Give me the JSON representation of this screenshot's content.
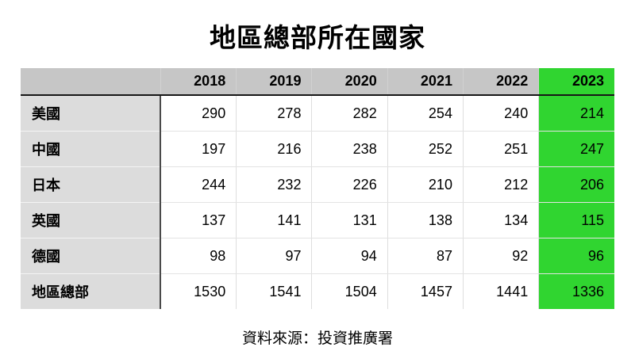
{
  "chart_data": {
    "type": "table",
    "title": "地區總部所在國家",
    "categories": [
      "2018",
      "2019",
      "2020",
      "2021",
      "2022",
      "2023"
    ],
    "series": [
      {
        "name": "美國",
        "values": [
          290,
          278,
          282,
          254,
          240,
          214
        ]
      },
      {
        "name": "中國",
        "values": [
          197,
          216,
          238,
          252,
          251,
          247
        ]
      },
      {
        "name": "日本",
        "values": [
          244,
          232,
          226,
          210,
          212,
          206
        ]
      },
      {
        "name": "英國",
        "values": [
          137,
          141,
          131,
          138,
          134,
          115
        ]
      },
      {
        "name": "德國",
        "values": [
          98,
          97,
          94,
          87,
          92,
          96
        ]
      },
      {
        "name": "地區總部",
        "values": [
          1530,
          1541,
          1504,
          1457,
          1441,
          1336
        ]
      }
    ],
    "highlight_column": "2023",
    "corner_label": "",
    "source": "資料來源：投資推廣署",
    "layout_hints": {
      "header_position": "top",
      "row_labels_position": "left",
      "grid": "light"
    }
  },
  "colors": {
    "header_gray": "#c6c6c6",
    "label_gray": "#dcdcdc",
    "highlight_green": "#30d530",
    "text": "#000000",
    "background": "#ffffff"
  }
}
